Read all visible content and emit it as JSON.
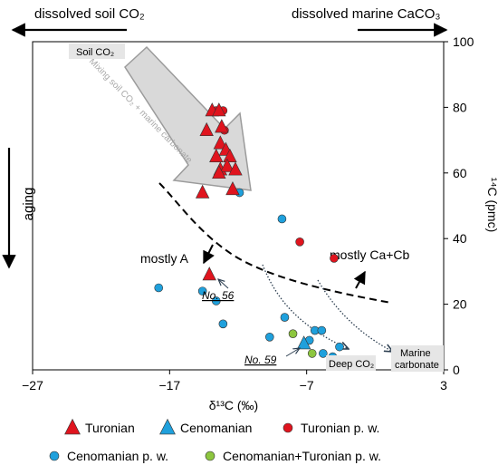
{
  "chart_data": {
    "type": "scatter",
    "xlabel": "δ¹³C (‰)",
    "ylabel": "¹⁴C (pmc)",
    "xlim": [
      -27,
      3
    ],
    "ylim": [
      0,
      100
    ],
    "x_ticks": [
      -27,
      -17,
      -7,
      3
    ],
    "y_ticks": [
      0,
      20,
      40,
      60,
      80,
      100
    ],
    "top_labels": {
      "left": "dissolved soil CO₂",
      "right": "dissolved marine CaCO₃"
    },
    "side_label": "aging",
    "series": [
      {
        "name": "Turonian",
        "marker": "triangle",
        "color": "#e0141e",
        "points": [
          [
            -13.9,
            79
          ],
          [
            -13.4,
            79
          ],
          [
            -13.2,
            74
          ],
          [
            -14.3,
            73
          ],
          [
            -13.3,
            69
          ],
          [
            -12.9,
            67
          ],
          [
            -13.6,
            65
          ],
          [
            -12.6,
            65
          ],
          [
            -13.3,
            61
          ],
          [
            -12.8,
            62
          ],
          [
            -12.2,
            61
          ],
          [
            -13.4,
            60
          ],
          [
            -12.4,
            55
          ],
          [
            -14.6,
            54
          ],
          [
            -14.1,
            29
          ]
        ]
      },
      {
        "name": "Cenomanian",
        "marker": "triangle",
        "color": "#1fa0dc",
        "points": [
          [
            -7.2,
            8
          ]
        ]
      },
      {
        "name": "Turonian p. w.",
        "marker": "circle",
        "color": "#e0141e",
        "points": [
          [
            -13.6,
            79
          ],
          [
            -13.1,
            79
          ],
          [
            -13.0,
            73
          ],
          [
            -7.5,
            39
          ],
          [
            -5.0,
            34
          ]
        ]
      },
      {
        "name": "Cenomanian p. w.",
        "marker": "circle",
        "color": "#1fa0dc",
        "points": [
          [
            -11.9,
            54
          ],
          [
            -8.8,
            46
          ],
          [
            -17.8,
            25
          ],
          [
            -14.6,
            24
          ],
          [
            -13.6,
            21
          ],
          [
            -13.1,
            14
          ],
          [
            -8.6,
            16
          ],
          [
            -6.4,
            12
          ],
          [
            -5.9,
            12
          ],
          [
            -9.7,
            10
          ],
          [
            -6.8,
            9
          ],
          [
            -4.6,
            7
          ],
          [
            -5.8,
            5
          ],
          [
            -5.1,
            4
          ]
        ]
      },
      {
        "name": "Cenomanian+Turonian p. w.",
        "marker": "circle",
        "color": "#8dc63f",
        "points": [
          [
            -8.0,
            11
          ],
          [
            -6.6,
            5
          ]
        ]
      }
    ],
    "annotations": {
      "soil_label": "Soil CO₂",
      "mixing_label": "Mixing soil CO₂ + marine carbonate",
      "mostly_a": "mostly A",
      "mostly_cacb": "mostly Ca+Cb",
      "no56": "No. 56",
      "no59": "No. 59",
      "deep": "Deep CO₂",
      "marine_line1": "Marine",
      "marine_line2": "carbonate"
    }
  }
}
